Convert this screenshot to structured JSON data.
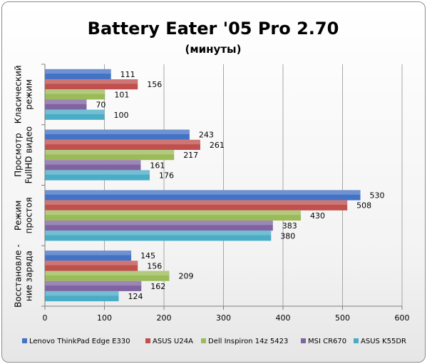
{
  "chart_data": {
    "type": "bar",
    "orientation": "horizontal",
    "title": "Battery Eater '05 Pro 2.70",
    "subtitle": "(минуты)",
    "categories": [
      [
        "Класический",
        "режим"
      ],
      [
        "Просмотр",
        "FullHD видео"
      ],
      [
        "Режим",
        "простоя"
      ],
      [
        "Восстановле -",
        "ние заряда"
      ]
    ],
    "series": [
      {
        "name": "Lenovo ThinkPad Edge E330",
        "color": "#4472C4",
        "values": [
          111,
          243,
          530,
          145
        ]
      },
      {
        "name": "ASUS U24A",
        "color": "#C0504D",
        "values": [
          156,
          261,
          508,
          156
        ]
      },
      {
        "name": "Dell Inspiron 14z 5423",
        "color": "#9BBB59",
        "values": [
          101,
          217,
          430,
          209
        ]
      },
      {
        "name": "MSI CR670",
        "color": "#8064A2",
        "values": [
          70,
          161,
          383,
          162
        ]
      },
      {
        "name": "ASUS K55DR",
        "color": "#4BACC6",
        "values": [
          100,
          176,
          380,
          124
        ]
      }
    ],
    "xlim": [
      0,
      600
    ],
    "xticks": [
      0,
      100,
      200,
      300,
      400,
      500,
      600
    ],
    "grid": true,
    "legend_position": "bottom"
  }
}
